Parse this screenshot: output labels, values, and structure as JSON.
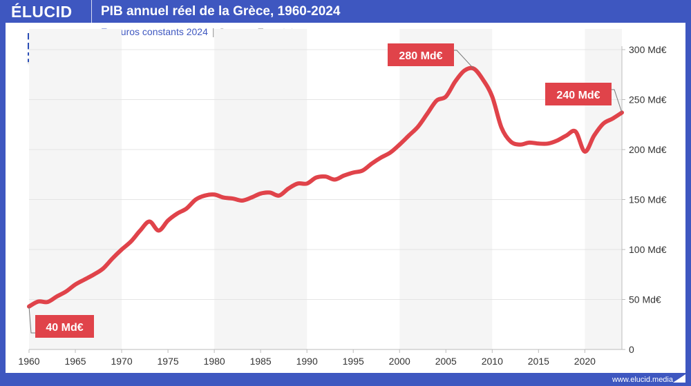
{
  "header": {
    "brand": "ÉLUCID",
    "title": "PIB annuel réel de la Grèce, 1960-2024"
  },
  "subtitle": {
    "units": "En euros constants 2024",
    "separator": "|",
    "source": "Source : Eurostat"
  },
  "flag": "greece-flag",
  "footer": {
    "url": "www.elucid.media"
  },
  "colors": {
    "brand": "#3e57c0",
    "line": "#e0434a",
    "band": "#f5f5f5"
  },
  "chart_data": {
    "type": "line",
    "title": "PIB annuel réel de la Grèce, 1960-2024",
    "xlabel": "",
    "ylabel": "",
    "xlim": [
      1960,
      2024
    ],
    "ylim": [
      0,
      300
    ],
    "grid": true,
    "x_ticks": [
      "1960",
      "1965",
      "1970",
      "1975",
      "1980",
      "1985",
      "1990",
      "1995",
      "2000",
      "2005",
      "2010",
      "2015",
      "2020"
    ],
    "y_ticks": [
      "0",
      "50 Md€",
      "100 Md€",
      "150 Md€",
      "200 Md€",
      "250 Md€",
      "300 Md€"
    ],
    "y_axis_position": "right",
    "series": [
      {
        "x": [
          1960,
          1961,
          1962,
          1963,
          1964,
          1965,
          1966,
          1967,
          1968,
          1969,
          1970,
          1971,
          1972,
          1973,
          1974,
          1975,
          1976,
          1977,
          1978,
          1979,
          1980,
          1981,
          1982,
          1983,
          1984,
          1985,
          1986,
          1987,
          1988,
          1989,
          1990,
          1991,
          1992,
          1993,
          1994,
          1995,
          1996,
          1997,
          1998,
          1999,
          2000,
          2001,
          2002,
          2003,
          2004,
          2005,
          2006,
          2007,
          2008,
          2009,
          2010,
          2011,
          2012,
          2013,
          2014,
          2015,
          2016,
          2017,
          2018,
          2019,
          2020,
          2021,
          2022,
          2023,
          2024
        ],
        "values": [
          43,
          48,
          47.5,
          53,
          58,
          65,
          70,
          75,
          81,
          91,
          100,
          108,
          119,
          128,
          119,
          129,
          136,
          141,
          150,
          154,
          155,
          152,
          151,
          149,
          152,
          156,
          157,
          154,
          161,
          166,
          166,
          172,
          173,
          170,
          174,
          177,
          179,
          186,
          192,
          197,
          205,
          214,
          223,
          236,
          249,
          253,
          268,
          279,
          281,
          270,
          253,
          222,
          208,
          205,
          207,
          206,
          206,
          209,
          214,
          218,
          198,
          214,
          226,
          231,
          237
        ]
      }
    ],
    "annotations": [
      {
        "text": "40 Md€",
        "x": 1960
      },
      {
        "text": "280 Md€",
        "x": 2008
      },
      {
        "text": "240 Md€",
        "x": 2024
      }
    ]
  }
}
